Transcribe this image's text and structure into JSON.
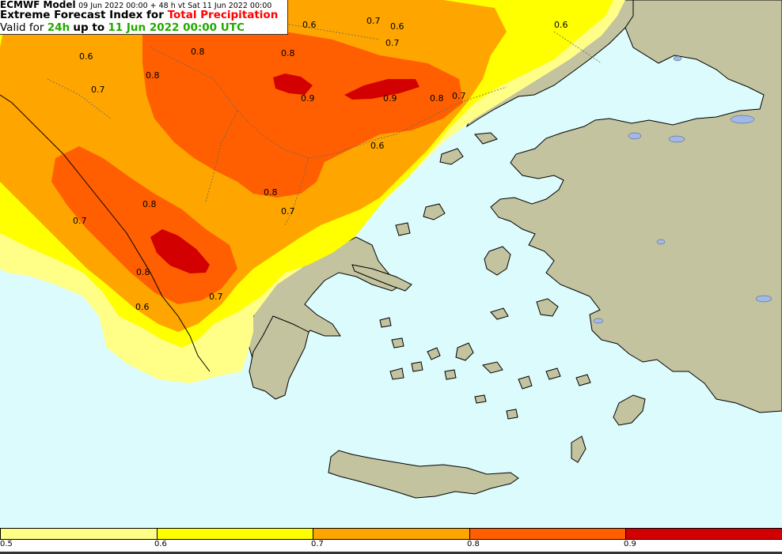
{
  "title": {
    "model": "ECMWF Model",
    "run_info": "09 Jun 2022 00:00 + 48 h vt Sat 11 Jun 2022 00:00",
    "index_prefix": "Extreme Forecast Index for",
    "parameter": "Total Precipitation",
    "valid_prefix": "Valid for",
    "period": "24h",
    "up_to": "up to",
    "valid_time": "11 Jun 2022 00:00 UTC"
  },
  "contour_labels": [
    "0.6",
    "0.7",
    "0.6",
    "0.7",
    "0.6",
    "0.6",
    "0.8",
    "0.8",
    "0.8",
    "0.7",
    "0.9",
    "0.9",
    "0.8",
    "0.7",
    "0.6",
    "0.8",
    "0.8",
    "0.7",
    "0.7",
    "0.8",
    "0.7",
    "0.6"
  ],
  "legend": {
    "colors": [
      "#ffff88",
      "#ffff00",
      "#ffa500",
      "#ff5f00",
      "#d20000"
    ],
    "ticks": [
      "0.5",
      "0.6",
      "0.7",
      "0.8",
      "0.9"
    ]
  },
  "colors": {
    "sea": "#dcfbfc",
    "land": "#c3c3a0",
    "efi_0_5": "#ffff88",
    "efi_0_6": "#ffff00",
    "efi_0_7": "#ffa500",
    "efi_0_8": "#ff5f00",
    "efi_0_9": "#d20000",
    "lakes": "#9fb8ee"
  }
}
